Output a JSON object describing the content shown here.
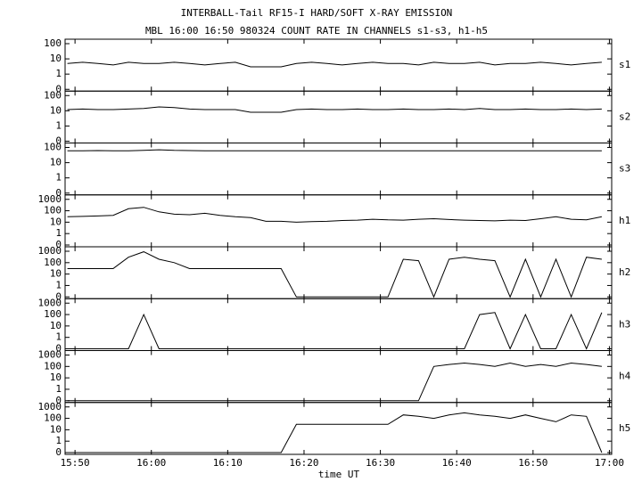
{
  "chart_data": {
    "type": "line",
    "title": "INTERBALL-Tail RF15-I HARD/SOFT X-RAY EMISSION",
    "subtitle": "MBL 16:00 16:50 980324  COUNT RATE IN CHANNELS s1-s3, h1-h5",
    "xlabel": "time UT",
    "yscale": "log-zero",
    "xlim": [
      948.7,
      1020.3
    ],
    "xticks": [
      {
        "value": 950,
        "label": "15:50"
      },
      {
        "value": 960,
        "label": "16:00"
      },
      {
        "value": 970,
        "label": "16:10"
      },
      {
        "value": 980,
        "label": "16:20"
      },
      {
        "value": 990,
        "label": "16:30"
      },
      {
        "value": 1000,
        "label": "16:40"
      },
      {
        "value": 1010,
        "label": "16:50"
      },
      {
        "value": 1020,
        "label": "17:00"
      }
    ],
    "x": [
      949,
      951,
      953,
      955,
      957,
      959,
      961,
      963,
      965,
      967,
      969,
      971,
      973,
      975,
      977,
      979,
      981,
      983,
      985,
      987,
      989,
      991,
      993,
      995,
      997,
      999,
      1001,
      1003,
      1005,
      1007,
      1009,
      1011,
      1013,
      1015,
      1017,
      1019
    ],
    "series": [
      {
        "name": "s1",
        "color": "#000000",
        "ylim": [
          0,
          100
        ],
        "yticks": [
          0,
          1,
          10,
          100
        ],
        "values": [
          5,
          6,
          5,
          4,
          6,
          5,
          5,
          6,
          5,
          4,
          5,
          6,
          3,
          3,
          3,
          5,
          6,
          5,
          4,
          5,
          6,
          5,
          5,
          4,
          6,
          5,
          5,
          6,
          4,
          5,
          5,
          6,
          5,
          4,
          5,
          6
        ]
      },
      {
        "name": "s2",
        "color": "#000000",
        "ylim": [
          0,
          100
        ],
        "yticks": [
          0,
          1,
          10,
          100
        ],
        "values": [
          12,
          13,
          12,
          12,
          13,
          14,
          18,
          16,
          13,
          12,
          12,
          12,
          8,
          8,
          8,
          12,
          13,
          12,
          12,
          13,
          12,
          12,
          13,
          12,
          12,
          13,
          12,
          14,
          12,
          12,
          13,
          12,
          12,
          13,
          12,
          13
        ]
      },
      {
        "name": "s3",
        "color": "#000000",
        "ylim": [
          0,
          100
        ],
        "yticks": [
          0,
          1,
          10,
          100
        ],
        "values": [
          60,
          60,
          62,
          60,
          61,
          65,
          70,
          64,
          62,
          60,
          60,
          60,
          60,
          60,
          60,
          60,
          60,
          61,
          60,
          60,
          60,
          61,
          60,
          60,
          60,
          60,
          60,
          61,
          60,
          60,
          60,
          60,
          60,
          60,
          60,
          60
        ]
      },
      {
        "name": "h1",
        "color": "#000000",
        "ylim": [
          0,
          1000
        ],
        "yticks": [
          0,
          1,
          10,
          100,
          1000
        ],
        "values": [
          30,
          32,
          35,
          40,
          150,
          200,
          80,
          50,
          45,
          60,
          40,
          30,
          25,
          12,
          12,
          10,
          11,
          12,
          14,
          15,
          18,
          16,
          15,
          18,
          20,
          17,
          15,
          14,
          13,
          15,
          14,
          20,
          30,
          18,
          16,
          30
        ]
      },
      {
        "name": "h2",
        "color": "#000000",
        "ylim": [
          0,
          1000
        ],
        "yticks": [
          0,
          1,
          10,
          100,
          1000
        ],
        "values": [
          30,
          30,
          30,
          30,
          300,
          900,
          200,
          100,
          30,
          30,
          30,
          30,
          30,
          30,
          30,
          0,
          0,
          0,
          0,
          0,
          0,
          0,
          200,
          150,
          0,
          200,
          300,
          200,
          150,
          0,
          200,
          0,
          200,
          0,
          300,
          200
        ]
      },
      {
        "name": "h3",
        "color": "#000000",
        "ylim": [
          0,
          1000
        ],
        "yticks": [
          0,
          1,
          10,
          100,
          1000
        ],
        "values": [
          0,
          0,
          0,
          0,
          0,
          100,
          0,
          0,
          0,
          0,
          0,
          0,
          0,
          0,
          0,
          0,
          0,
          0,
          0,
          0,
          0,
          0,
          0,
          0,
          0,
          0,
          0,
          100,
          150,
          0,
          100,
          0,
          0,
          100,
          0,
          150
        ]
      },
      {
        "name": "h4",
        "color": "#000000",
        "ylim": [
          0,
          1000
        ],
        "yticks": [
          0,
          1,
          10,
          100,
          1000
        ],
        "values": [
          0,
          0,
          0,
          0,
          0,
          0,
          0,
          0,
          0,
          0,
          0,
          0,
          0,
          0,
          0,
          0,
          0,
          0,
          0,
          0,
          0,
          0,
          0,
          0,
          100,
          150,
          200,
          150,
          100,
          200,
          100,
          150,
          100,
          200,
          150,
          100
        ]
      },
      {
        "name": "h5",
        "color": "#000000",
        "ylim": [
          0,
          1000
        ],
        "yticks": [
          0,
          1,
          10,
          100,
          1000
        ],
        "values": [
          0,
          0,
          0,
          0,
          0,
          0,
          0,
          0,
          0,
          0,
          0,
          0,
          0,
          0,
          0,
          30,
          30,
          30,
          30,
          30,
          30,
          30,
          200,
          150,
          100,
          200,
          300,
          200,
          150,
          100,
          200,
          100,
          50,
          200,
          150,
          0
        ]
      }
    ]
  }
}
